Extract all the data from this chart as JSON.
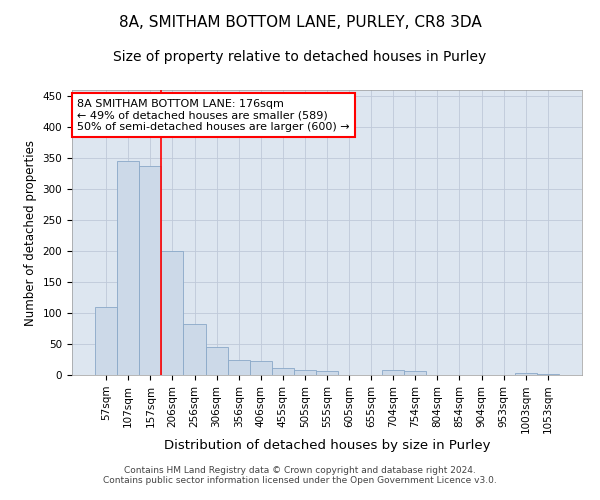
{
  "title": "8A, SMITHAM BOTTOM LANE, PURLEY, CR8 3DA",
  "subtitle": "Size of property relative to detached houses in Purley",
  "xlabel": "Distribution of detached houses by size in Purley",
  "ylabel": "Number of detached properties",
  "footer_line1": "Contains HM Land Registry data © Crown copyright and database right 2024.",
  "footer_line2": "Contains public sector information licensed under the Open Government Licence v3.0.",
  "bar_labels": [
    "57sqm",
    "107sqm",
    "157sqm",
    "206sqm",
    "256sqm",
    "306sqm",
    "356sqm",
    "406sqm",
    "455sqm",
    "505sqm",
    "555sqm",
    "605sqm",
    "655sqm",
    "704sqm",
    "754sqm",
    "804sqm",
    "854sqm",
    "904sqm",
    "953sqm",
    "1003sqm",
    "1053sqm"
  ],
  "bar_values": [
    109,
    345,
    338,
    200,
    83,
    46,
    25,
    22,
    11,
    8,
    6,
    0,
    0,
    8,
    6,
    0,
    0,
    0,
    0,
    3,
    2
  ],
  "bar_color": "#ccd9e8",
  "bar_edge_color": "#89a8c8",
  "vline_x": 2.5,
  "vline_color": "red",
  "annotation_text": "8A SMITHAM BOTTOM LANE: 176sqm\n← 49% of detached houses are smaller (589)\n50% of semi-detached houses are larger (600) →",
  "annotation_box_color": "white",
  "annotation_box_edge": "red",
  "ylim": [
    0,
    460
  ],
  "yticks": [
    0,
    50,
    100,
    150,
    200,
    250,
    300,
    350,
    400,
    450
  ],
  "title_fontsize": 11,
  "subtitle_fontsize": 10,
  "xlabel_fontsize": 9.5,
  "ylabel_fontsize": 8.5,
  "tick_fontsize": 7.5,
  "annotation_fontsize": 8,
  "grid_color": "#bfc9d9",
  "background_color": "#dde6f0"
}
